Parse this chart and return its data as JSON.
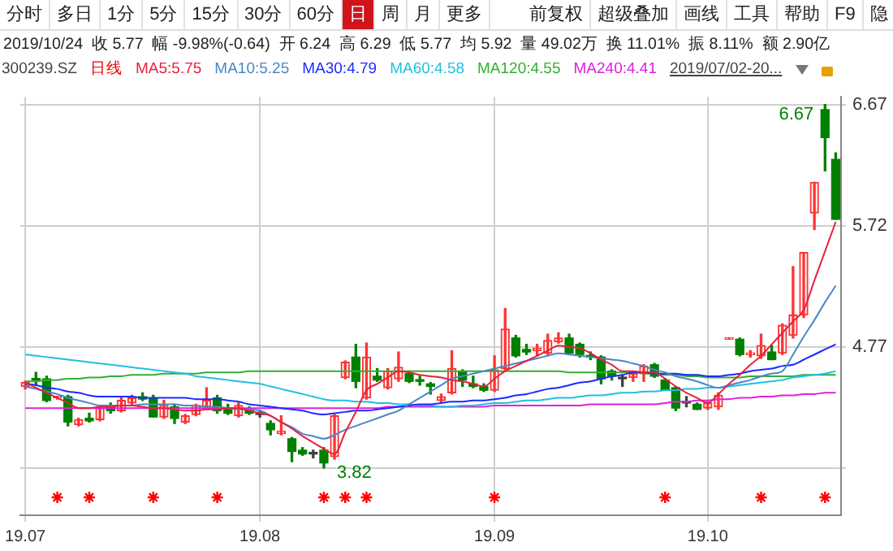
{
  "chart_data": {
    "type": "candlestick",
    "title": "2019/10/24  收 5.77  幅 -9.98%(-0.64)  开 6.24  高 6.29  低 5.77  均 5.92  量 49.02万  换 11.01%  振 8.11%  额 2.90亿",
    "annotations": [
      "分时",
      "多日",
      "1分",
      "5分",
      "15分",
      "30分",
      "60分",
      "日",
      "周",
      "月",
      "更多",
      "前复权",
      "超级叠加",
      "画线",
      "工具",
      "帮助",
      "F9",
      "隐",
      "300239.SZ",
      "日线",
      "2019/07/02-20...",
      "6.67",
      "3.82"
    ],
    "categories": [
      "19.07",
      null,
      null,
      null,
      null,
      null,
      null,
      null,
      null,
      null,
      null,
      null,
      null,
      null,
      null,
      null,
      null,
      null,
      null,
      null,
      null,
      null,
      "19.08",
      null,
      null,
      null,
      null,
      null,
      null,
      null,
      null,
      null,
      null,
      null,
      null,
      null,
      null,
      null,
      null,
      null,
      null,
      null,
      null,
      null,
      "19.09",
      null,
      null,
      null,
      null,
      null,
      null,
      null,
      null,
      null,
      null,
      null,
      null,
      null,
      null,
      null,
      null,
      null,
      null,
      null,
      "19.10",
      null,
      null,
      null,
      null,
      null,
      null,
      null,
      null,
      null,
      null,
      null,
      null
    ],
    "ohlc": [
      [
        4.46,
        4.5,
        4.44,
        4.49
      ],
      [
        4.52,
        4.57,
        4.47,
        4.51
      ],
      [
        4.52,
        4.54,
        4.34,
        4.35
      ],
      [
        4.37,
        4.38,
        4.36,
        4.38
      ],
      [
        4.38,
        4.39,
        4.15,
        4.18
      ],
      [
        4.16,
        4.21,
        4.15,
        4.2
      ],
      [
        4.21,
        4.25,
        4.18,
        4.19
      ],
      [
        4.2,
        4.3,
        4.19,
        4.29
      ],
      [
        4.3,
        4.33,
        4.25,
        4.27
      ],
      [
        4.27,
        4.37,
        4.26,
        4.35
      ],
      [
        4.33,
        4.39,
        4.32,
        4.37
      ],
      [
        4.38,
        4.41,
        4.35,
        4.36
      ],
      [
        4.37,
        4.39,
        4.22,
        4.22
      ],
      [
        4.22,
        4.35,
        4.21,
        4.31
      ],
      [
        4.3,
        4.32,
        4.17,
        4.21
      ],
      [
        4.18,
        4.24,
        4.17,
        4.23
      ],
      [
        4.24,
        4.32,
        4.23,
        4.31
      ],
      [
        4.3,
        4.45,
        4.29,
        4.35
      ],
      [
        4.37,
        4.39,
        4.25,
        4.27
      ],
      [
        4.29,
        4.32,
        4.24,
        4.25
      ],
      [
        4.23,
        4.33,
        4.22,
        4.31
      ],
      [
        4.28,
        4.3,
        4.24,
        4.25
      ],
      [
        4.24,
        4.27,
        4.22,
        4.24
      ],
      [
        4.17,
        4.19,
        4.08,
        4.12
      ],
      [
        4.09,
        4.23,
        4.08,
        4.11
      ],
      [
        4.05,
        4.06,
        3.87,
        3.95
      ],
      [
        3.96,
        3.98,
        3.92,
        3.93
      ],
      [
        3.93,
        3.96,
        3.9,
        3.93
      ],
      [
        3.96,
        3.98,
        3.82,
        3.86
      ],
      [
        3.91,
        4.24,
        3.89,
        4.23
      ],
      [
        4.53,
        4.66,
        4.52,
        4.65
      ],
      [
        4.69,
        4.79,
        4.45,
        4.5
      ],
      [
        4.37,
        4.8,
        4.36,
        4.69
      ],
      [
        4.54,
        4.6,
        4.5,
        4.51
      ],
      [
        4.45,
        4.6,
        4.44,
        4.58
      ],
      [
        4.52,
        4.73,
        4.5,
        4.61
      ],
      [
        4.56,
        4.58,
        4.49,
        4.5
      ],
      [
        4.51,
        4.54,
        4.47,
        4.5
      ],
      [
        4.48,
        4.49,
        4.4,
        4.46
      ],
      [
        4.35,
        4.4,
        4.34,
        4.38
      ],
      [
        4.41,
        4.74,
        4.4,
        4.6
      ],
      [
        4.58,
        4.59,
        4.46,
        4.51
      ],
      [
        4.48,
        4.54,
        4.45,
        4.46
      ],
      [
        4.46,
        4.48,
        4.42,
        4.43
      ],
      [
        4.43,
        4.7,
        4.42,
        4.59
      ],
      [
        4.6,
        5.07,
        4.59,
        4.91
      ],
      [
        4.84,
        4.86,
        4.69,
        4.7
      ],
      [
        4.75,
        4.79,
        4.71,
        4.73
      ],
      [
        4.74,
        4.79,
        4.7,
        4.76
      ],
      [
        4.72,
        4.87,
        4.71,
        4.82
      ],
      [
        4.81,
        4.88,
        4.8,
        4.84
      ],
      [
        4.84,
        4.87,
        4.71,
        4.72
      ],
      [
        4.79,
        4.8,
        4.69,
        4.71
      ],
      [
        4.7,
        4.73,
        4.67,
        4.69
      ],
      [
        4.69,
        4.7,
        4.48,
        4.52
      ],
      [
        4.58,
        4.59,
        4.51,
        4.54
      ],
      [
        4.52,
        4.55,
        4.46,
        4.52
      ],
      [
        4.53,
        4.58,
        4.5,
        4.56
      ],
      [
        4.57,
        4.63,
        4.5,
        4.62
      ],
      [
        4.63,
        4.64,
        4.53,
        4.54
      ],
      [
        4.51,
        4.52,
        4.43,
        4.43
      ],
      [
        4.45,
        4.46,
        4.27,
        4.29
      ],
      [
        4.33,
        4.38,
        4.3,
        4.33
      ],
      [
        4.32,
        4.33,
        4.28,
        4.28
      ],
      [
        4.29,
        4.34,
        4.28,
        4.33
      ],
      [
        4.3,
        4.41,
        4.28,
        4.39
      ],
      [
        4.83,
        4.84,
        4.83,
        4.84
      ],
      [
        4.83,
        4.84,
        4.7,
        4.71
      ],
      [
        4.71,
        4.74,
        4.69,
        4.72
      ],
      [
        4.7,
        4.87,
        4.68,
        4.78
      ],
      [
        4.73,
        4.78,
        4.67,
        4.67
      ],
      [
        4.72,
        4.95,
        4.71,
        4.94
      ],
      [
        4.86,
        5.4,
        4.84,
        5.02
      ],
      [
        5.02,
        5.51,
        5.0,
        5.51
      ],
      [
        5.82,
        6.06,
        5.69,
        6.06
      ],
      [
        6.63,
        6.67,
        6.15,
        6.41
      ],
      [
        6.24,
        6.29,
        5.77,
        5.77
      ]
    ],
    "colors": [
      "#ff3232",
      "#008000",
      "#008000",
      "#ff3232",
      "#008000",
      "#ff3232",
      "#008000",
      "#ff3232",
      "#008000",
      "#ff3232",
      "#ff3232",
      "#008000",
      "#008000",
      "#ff3232",
      "#008000",
      "#ff3232",
      "#ff3232",
      "#ff3232",
      "#008000",
      "#008000",
      "#ff3232",
      "#008000",
      "#404040",
      "#008000",
      "#ff3232",
      "#008000",
      "#008000",
      "#404040",
      "#008000",
      "#ff3232",
      "#ff3232",
      "#008000",
      "#ff3232",
      "#008000",
      "#ff3232",
      "#ff3232",
      "#008000",
      "#008000",
      "#008000",
      "#ff3232",
      "#ff3232",
      "#008000",
      "#008000",
      "#008000",
      "#ff3232",
      "#ff3232",
      "#008000",
      "#008000",
      "#ff3232",
      "#ff3232",
      "#ff3232",
      "#008000",
      "#008000",
      "#008000",
      "#008000",
      "#008000",
      "#404040",
      "#ff3232",
      "#ff3232",
      "#008000",
      "#008000",
      "#008000",
      "#404040",
      "#008000",
      "#ff3232",
      "#ff3232",
      "#ff3232",
      "#008000",
      "#ff3232",
      "#ff3232",
      "#008000",
      "#ff3232",
      "#ff3232",
      "#ff3232",
      "#ff3232",
      "#008000",
      "#008000"
    ],
    "series": [
      {
        "name": "MA5:5.75",
        "type": "line",
        "color": "#e8203a",
        "values": [
          4.49,
          4.45,
          4.41,
          4.37,
          4.33,
          4.29,
          4.29,
          4.3,
          4.3,
          4.31,
          4.31,
          4.3,
          4.29,
          4.29,
          4.28,
          4.27,
          4.27,
          4.28,
          4.28,
          4.29,
          4.29,
          4.27,
          4.25,
          4.23,
          4.18,
          4.13,
          4.07,
          4.02,
          3.97,
          3.93,
          4.1,
          4.26,
          4.43,
          4.48,
          4.53,
          4.58,
          4.57,
          4.55,
          4.54,
          4.53,
          4.51,
          4.5,
          4.48,
          4.46,
          4.52,
          4.58,
          4.62,
          4.66,
          4.7,
          4.74,
          4.78,
          4.77,
          4.76,
          4.72,
          4.67,
          4.63,
          4.58,
          4.58,
          4.57,
          4.57,
          4.52,
          4.46,
          4.41,
          4.37,
          4.33,
          4.4,
          4.48,
          4.55,
          4.63,
          4.7,
          4.79,
          4.88,
          4.97,
          5.06,
          5.29,
          5.52,
          5.75
        ]
      },
      {
        "name": "MA10:5.25",
        "type": "line",
        "color": "#4a86c8",
        "values": [
          4.46,
          4.44,
          4.42,
          4.4,
          4.37,
          4.35,
          4.33,
          4.31,
          4.31,
          4.31,
          4.31,
          4.32,
          4.32,
          4.32,
          4.32,
          4.31,
          4.31,
          4.3,
          4.3,
          4.29,
          4.28,
          4.28,
          4.27,
          4.23,
          4.18,
          4.14,
          4.09,
          4.07,
          4.05,
          4.08,
          4.12,
          4.15,
          4.18,
          4.21,
          4.24,
          4.27,
          4.32,
          4.37,
          4.42,
          4.47,
          4.52,
          4.54,
          4.56,
          4.58,
          4.6,
          4.62,
          4.64,
          4.66,
          4.68,
          4.7,
          4.72,
          4.71,
          4.7,
          4.69,
          4.68,
          4.67,
          4.66,
          4.64,
          4.62,
          4.59,
          4.57,
          4.54,
          4.52,
          4.5,
          4.47,
          4.45,
          4.47,
          4.49,
          4.51,
          4.54,
          4.56,
          4.58,
          4.71,
          4.85,
          4.98,
          5.12,
          5.25
        ]
      },
      {
        "name": "MA30:4.79",
        "type": "line",
        "color": "#1a2aff",
        "values": [
          4.48,
          4.47,
          4.45,
          4.44,
          4.42,
          4.41,
          4.39,
          4.38,
          4.38,
          4.38,
          4.38,
          4.37,
          4.37,
          4.37,
          4.37,
          4.37,
          4.36,
          4.36,
          4.36,
          4.35,
          4.34,
          4.32,
          4.31,
          4.3,
          4.29,
          4.28,
          4.27,
          4.25,
          4.24,
          4.25,
          4.26,
          4.27,
          4.27,
          4.28,
          4.29,
          4.3,
          4.31,
          4.32,
          4.32,
          4.33,
          4.34,
          4.34,
          4.35,
          4.35,
          4.36,
          4.37,
          4.39,
          4.4,
          4.42,
          4.44,
          4.45,
          4.47,
          4.49,
          4.5,
          4.52,
          4.54,
          4.55,
          4.57,
          4.57,
          4.56,
          4.56,
          4.56,
          4.55,
          4.55,
          4.54,
          4.54,
          4.55,
          4.56,
          4.58,
          4.59,
          4.6,
          4.62,
          4.63,
          4.67,
          4.71,
          4.75,
          4.79
        ]
      },
      {
        "name": "MA60:4.58",
        "type": "line",
        "color": "#20c0e0",
        "values": [
          4.71,
          4.7,
          4.69,
          4.68,
          4.67,
          4.66,
          4.65,
          4.64,
          4.63,
          4.62,
          4.61,
          4.6,
          4.59,
          4.58,
          4.57,
          4.56,
          4.54,
          4.53,
          4.52,
          4.51,
          4.5,
          4.49,
          4.48,
          4.46,
          4.44,
          4.42,
          4.4,
          4.38,
          4.36,
          4.35,
          4.35,
          4.34,
          4.34,
          4.33,
          4.33,
          4.32,
          4.32,
          4.31,
          4.31,
          4.3,
          4.3,
          4.31,
          4.31,
          4.32,
          4.33,
          4.33,
          4.34,
          4.35,
          4.35,
          4.36,
          4.37,
          4.37,
          4.38,
          4.39,
          4.39,
          4.4,
          4.41,
          4.41,
          4.42,
          4.42,
          4.43,
          4.43,
          4.44,
          4.44,
          4.45,
          4.45,
          4.46,
          4.47,
          4.48,
          4.49,
          4.5,
          4.51,
          4.53,
          4.54,
          4.55,
          4.56,
          4.58
        ]
      },
      {
        "name": "MA120:4.55",
        "type": "line",
        "color": "#30b030",
        "values": [
          4.5,
          4.5,
          4.51,
          4.51,
          4.52,
          4.52,
          4.53,
          4.53,
          4.54,
          4.54,
          4.55,
          4.55,
          4.55,
          4.56,
          4.56,
          4.56,
          4.56,
          4.57,
          4.57,
          4.57,
          4.57,
          4.58,
          4.58,
          4.58,
          4.58,
          4.58,
          4.58,
          4.58,
          4.58,
          4.58,
          4.58,
          4.58,
          4.58,
          4.58,
          4.58,
          4.58,
          4.58,
          4.58,
          4.58,
          4.58,
          4.58,
          4.58,
          4.58,
          4.58,
          4.58,
          4.58,
          4.58,
          4.58,
          4.58,
          4.58,
          4.58,
          4.57,
          4.57,
          4.57,
          4.57,
          4.57,
          4.57,
          4.57,
          4.56,
          4.56,
          4.55,
          4.55,
          4.54,
          4.54,
          4.53,
          4.53,
          4.53,
          4.53,
          4.54,
          4.54,
          4.54,
          4.54,
          4.54,
          4.55,
          4.55,
          4.55,
          4.55
        ]
      },
      {
        "name": "MA240:4.41",
        "type": "line",
        "color": "#e020e0",
        "values": [
          4.29,
          4.29,
          4.29,
          4.29,
          4.29,
          4.29,
          4.29,
          4.29,
          4.29,
          4.29,
          4.29,
          4.29,
          4.29,
          4.29,
          4.29,
          4.29,
          4.29,
          4.29,
          4.29,
          4.29,
          4.29,
          4.29,
          4.29,
          4.29,
          4.29,
          4.29,
          4.29,
          4.29,
          4.29,
          4.29,
          4.29,
          4.29,
          4.29,
          4.29,
          4.3,
          4.3,
          4.3,
          4.3,
          4.3,
          4.3,
          4.3,
          4.3,
          4.3,
          4.3,
          4.31,
          4.31,
          4.31,
          4.31,
          4.31,
          4.31,
          4.31,
          4.31,
          4.31,
          4.32,
          4.32,
          4.32,
          4.32,
          4.32,
          4.32,
          4.32,
          4.33,
          4.34,
          4.34,
          4.35,
          4.35,
          4.36,
          4.36,
          4.37,
          4.37,
          4.38,
          4.38,
          4.39,
          4.39,
          4.4,
          4.4,
          4.41,
          4.41
        ]
      },
      {
        "type": "scatter",
        "marker": "cross",
        "color": "#ff0000",
        "values": [
          null,
          null,
          null,
          3.59,
          null,
          null,
          3.59,
          null,
          null,
          null,
          null,
          null,
          3.59,
          null,
          null,
          null,
          null,
          null,
          3.59,
          null,
          null,
          null,
          null,
          null,
          null,
          null,
          null,
          null,
          3.59,
          null,
          3.59,
          null,
          3.59,
          null,
          null,
          null,
          null,
          null,
          null,
          null,
          null,
          null,
          null,
          null,
          3.59,
          null,
          null,
          null,
          null,
          null,
          null,
          null,
          null,
          null,
          null,
          null,
          null,
          null,
          null,
          null,
          3.59,
          null,
          null,
          null,
          null,
          null,
          null,
          null,
          null,
          3.59,
          null,
          null,
          null,
          null,
          null,
          3.59,
          null
        ]
      }
    ],
    "ylim": [
      3.45,
      6.73
    ],
    "yticks": [
      6.67,
      5.72,
      4.77,
      {
        "value": 3.82,
        "label": null
      }
    ],
    "grid": true,
    "legend": "top left"
  }
}
